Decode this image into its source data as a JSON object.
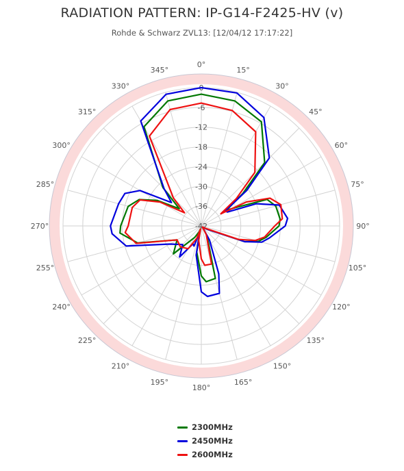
{
  "chart_data": {
    "type": "polar",
    "title": "RADIATION PATTERN: IP-G14-F2425-HV (v)",
    "subtitle": "Rohde & Schwarz ZVL13: [12/04/12 17:17:22]",
    "angle_labels": [
      "0°",
      "15°",
      "30°",
      "45°",
      "60°",
      "75°",
      "90°",
      "105°",
      "120°",
      "135°",
      "150°",
      "165°",
      "180°",
      "195°",
      "210°",
      "225°",
      "240°",
      "255°",
      "270°",
      "285°",
      "300°",
      "315°",
      "330°",
      "345°"
    ],
    "radial_labels": [
      "0",
      "-6",
      "-12",
      "-18",
      "-24",
      "-30",
      "-36",
      "-42"
    ],
    "radial_min": -42,
    "radial_max": 0,
    "band_color": "#fbdada",
    "angle_unit": "deg",
    "series": [
      {
        "name": "2300MHz",
        "color": "#007800",
        "angles": [
          0,
          15,
          30,
          45,
          52,
          58,
          62,
          68,
          75,
          85,
          90,
          100,
          105,
          110,
          120,
          135,
          150,
          165,
          175,
          180,
          190,
          195,
          200,
          210,
          225,
          240,
          255,
          265,
          270,
          285,
          293,
          300,
          308,
          315,
          330,
          345
        ],
        "values": [
          -2.0,
          -2.7,
          -5.5,
          -14.8,
          -26.0,
          -33.0,
          -30.0,
          -20.5,
          -18.6,
          -18.0,
          -18.4,
          -22.0,
          -24.0,
          -28.0,
          -40.0,
          -41.5,
          -38.5,
          -25.5,
          -25.0,
          -26.8,
          -34.0,
          -41.0,
          -40.0,
          -38.0,
          -30.0,
          -33.5,
          -22.0,
          -17.2,
          -17.5,
          -19.0,
          -21.5,
          -26.5,
          -33.5,
          -25.5,
          -7.2,
          -2.7
        ]
      },
      {
        "name": "2450MHz",
        "color": "#0000dd",
        "angles": [
          0,
          15,
          30,
          45,
          52,
          58,
          62,
          68,
          75,
          85,
          90,
          100,
          105,
          110,
          120,
          135,
          150,
          160,
          165,
          175,
          180,
          190,
          195,
          200,
          205,
          215,
          225,
          240,
          255,
          265,
          270,
          285,
          293,
          300,
          308,
          315,
          330,
          345
        ],
        "values": [
          0.5,
          -0.2,
          -4.0,
          -12.8,
          -24.5,
          -33.5,
          -33.0,
          -24.0,
          -17.5,
          -15.7,
          -16.5,
          -21.0,
          -23.0,
          -28.0,
          -40.0,
          -41.5,
          -37.0,
          -26.5,
          -20.8,
          -20.5,
          -22.0,
          -33.0,
          -40.0,
          -35.5,
          -36.0,
          -30.5,
          -34.0,
          -31.0,
          -18.4,
          -14.8,
          -14.4,
          -16.0,
          -16.8,
          -20.5,
          -30.5,
          -26.0,
          -5.2,
          -0.6
        ]
      },
      {
        "name": "2600MHz",
        "color": "#ee1111",
        "angles": [
          0,
          15,
          30,
          45,
          52,
          58,
          62,
          68,
          75,
          85,
          90,
          100,
          105,
          110,
          120,
          135,
          150,
          165,
          175,
          180,
          190,
          195,
          200,
          210,
          225,
          240,
          255,
          265,
          270,
          285,
          293,
          300,
          308,
          315,
          330,
          345
        ],
        "values": [
          -4.7,
          -5.7,
          -9.0,
          -19.0,
          -28.5,
          -35.0,
          -26.5,
          -19.5,
          -17.0,
          -17.3,
          -19.7,
          -22.5,
          -25.0,
          -30.0,
          -40.5,
          -41.5,
          -39.0,
          -30.0,
          -30.0,
          -32.0,
          -37.5,
          -41.0,
          -38.0,
          -34.0,
          -33.0,
          -33.5,
          -21.5,
          -18.8,
          -19.8,
          -20.3,
          -21.8,
          -27.5,
          -35.5,
          -30.0,
          -10.5,
          -5.4
        ]
      }
    ]
  }
}
